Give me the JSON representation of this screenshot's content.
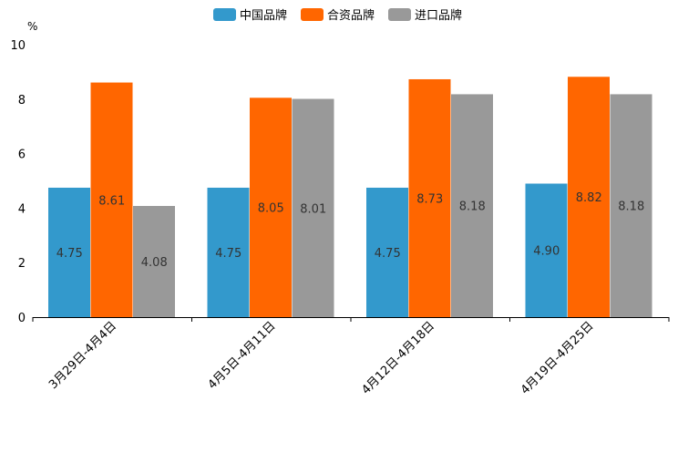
{
  "chart_data": {
    "type": "bar",
    "title": "",
    "ylabel": "%",
    "xlabel": "",
    "ylim": [
      0,
      10
    ],
    "yticks": [
      0,
      2,
      4,
      6,
      8,
      10
    ],
    "categories": [
      "3月29日-4月4日",
      "4月5日-4月11日",
      "4月12日-4月18日",
      "4月19日-4月25日"
    ],
    "series": [
      {
        "name": "中国品牌",
        "color": "#3399cc",
        "values": [
          4.75,
          4.75,
          4.75,
          4.9
        ],
        "labels": [
          "4.75",
          "4.75",
          "4.75",
          "4.90"
        ]
      },
      {
        "name": "合资品牌",
        "color": "#ff6600",
        "values": [
          8.61,
          8.05,
          8.73,
          8.82
        ],
        "labels": [
          "8.61",
          "8.05",
          "8.73",
          "8.82"
        ]
      },
      {
        "name": "进口品牌",
        "color": "#999999",
        "values": [
          4.08,
          8.01,
          8.18,
          8.18
        ],
        "labels": [
          "4.08",
          "8.01",
          "8.18",
          "8.18"
        ]
      }
    ],
    "legend_position": "top-center",
    "grid": false
  }
}
